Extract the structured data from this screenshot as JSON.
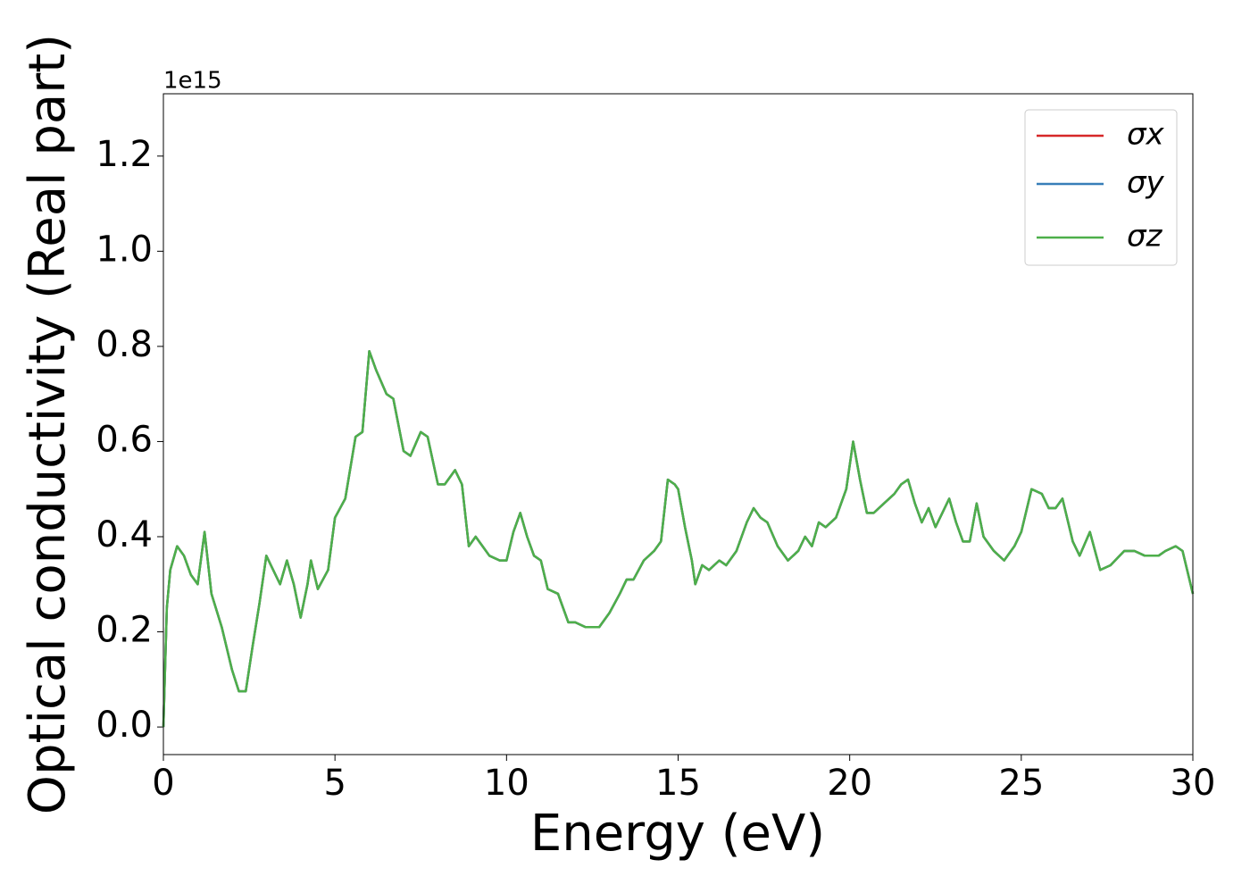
{
  "chart_data": {
    "type": "line",
    "xlabel": "Energy (eV)",
    "ylabel": "Optical conductivity (Real part)",
    "y_offset_label": "1e15",
    "x": [
      0,
      0.1,
      0.2,
      0.4,
      0.6,
      0.8,
      1.0,
      1.2,
      1.4,
      1.7,
      2.0,
      2.2,
      2.4,
      2.6,
      2.8,
      3.0,
      3.2,
      3.4,
      3.6,
      3.8,
      4.0,
      4.2,
      4.3,
      4.5,
      4.8,
      5.0,
      5.3,
      5.6,
      5.8,
      6.0,
      6.2,
      6.5,
      6.7,
      7.0,
      7.2,
      7.5,
      7.7,
      8.0,
      8.2,
      8.5,
      8.7,
      8.9,
      9.1,
      9.3,
      9.5,
      9.8,
      10.0,
      10.2,
      10.4,
      10.6,
      10.8,
      11.0,
      11.2,
      11.5,
      11.8,
      12.0,
      12.3,
      12.7,
      13.0,
      13.3,
      13.5,
      13.7,
      14.0,
      14.3,
      14.5,
      14.7,
      14.9,
      15.0,
      15.2,
      15.4,
      15.5,
      15.7,
      15.9,
      16.2,
      16.4,
      16.7,
      17.0,
      17.2,
      17.4,
      17.6,
      17.9,
      18.2,
      18.5,
      18.7,
      18.9,
      19.1,
      19.3,
      19.6,
      19.9,
      20.1,
      20.3,
      20.5,
      20.7,
      21.0,
      21.3,
      21.5,
      21.7,
      21.9,
      22.1,
      22.3,
      22.5,
      22.9,
      23.1,
      23.3,
      23.5,
      23.7,
      23.9,
      24.2,
      24.5,
      24.8,
      25.0,
      25.3,
      25.6,
      25.8,
      26.0,
      26.2,
      26.5,
      26.7,
      27.0,
      27.3,
      27.6,
      28.0,
      28.3,
      28.6,
      29.0,
      29.2,
      29.5,
      29.7,
      30.0
    ],
    "series": [
      {
        "name": "σx",
        "color": "#d62728",
        "values": [
          0.0,
          0.25,
          0.33,
          0.38,
          0.36,
          0.32,
          0.3,
          0.41,
          0.28,
          0.21,
          0.12,
          0.075,
          0.075,
          0.17,
          0.26,
          0.36,
          0.33,
          0.3,
          0.35,
          0.3,
          0.23,
          0.3,
          0.35,
          0.29,
          0.33,
          0.44,
          0.48,
          0.61,
          0.62,
          0.79,
          0.75,
          0.7,
          0.69,
          0.58,
          0.57,
          0.62,
          0.61,
          0.51,
          0.51,
          0.54,
          0.51,
          0.38,
          0.4,
          0.38,
          0.36,
          0.35,
          0.35,
          0.41,
          0.45,
          0.4,
          0.36,
          0.35,
          0.29,
          0.28,
          0.22,
          0.22,
          0.21,
          0.21,
          0.24,
          0.28,
          0.31,
          0.31,
          0.35,
          0.37,
          0.39,
          0.52,
          0.51,
          0.5,
          0.42,
          0.35,
          0.3,
          0.34,
          0.33,
          0.35,
          0.34,
          0.37,
          0.43,
          0.46,
          0.44,
          0.43,
          0.38,
          0.35,
          0.37,
          0.4,
          0.38,
          0.43,
          0.42,
          0.44,
          0.5,
          0.6,
          0.52,
          0.45,
          0.45,
          0.47,
          0.49,
          0.51,
          0.52,
          0.47,
          0.43,
          0.46,
          0.42,
          0.48,
          0.43,
          0.39,
          0.39,
          0.47,
          0.4,
          0.37,
          0.35,
          0.38,
          0.41,
          0.5,
          0.49,
          0.46,
          0.46,
          0.48,
          0.39,
          0.36,
          0.41,
          0.33,
          0.34,
          0.37,
          0.37,
          0.36,
          0.36,
          0.37,
          0.38,
          0.37,
          0.28
        ]
      },
      {
        "name": "σy",
        "color": "#377eb8",
        "values": [
          0.0,
          0.25,
          0.33,
          0.38,
          0.36,
          0.32,
          0.3,
          0.41,
          0.28,
          0.21,
          0.12,
          0.075,
          0.075,
          0.17,
          0.26,
          0.36,
          0.33,
          0.3,
          0.35,
          0.3,
          0.23,
          0.3,
          0.35,
          0.29,
          0.33,
          0.44,
          0.48,
          0.61,
          0.62,
          0.79,
          0.75,
          0.7,
          0.69,
          0.58,
          0.57,
          0.62,
          0.61,
          0.51,
          0.51,
          0.54,
          0.51,
          0.38,
          0.4,
          0.38,
          0.36,
          0.35,
          0.35,
          0.41,
          0.45,
          0.4,
          0.36,
          0.35,
          0.29,
          0.28,
          0.22,
          0.22,
          0.21,
          0.21,
          0.24,
          0.28,
          0.31,
          0.31,
          0.35,
          0.37,
          0.39,
          0.52,
          0.51,
          0.5,
          0.42,
          0.35,
          0.3,
          0.34,
          0.33,
          0.35,
          0.34,
          0.37,
          0.43,
          0.46,
          0.44,
          0.43,
          0.38,
          0.35,
          0.37,
          0.4,
          0.38,
          0.43,
          0.42,
          0.44,
          0.5,
          0.6,
          0.52,
          0.45,
          0.45,
          0.47,
          0.49,
          0.51,
          0.52,
          0.47,
          0.43,
          0.46,
          0.42,
          0.48,
          0.43,
          0.39,
          0.39,
          0.47,
          0.4,
          0.37,
          0.35,
          0.38,
          0.41,
          0.5,
          0.49,
          0.46,
          0.46,
          0.48,
          0.39,
          0.36,
          0.41,
          0.33,
          0.34,
          0.37,
          0.37,
          0.36,
          0.36,
          0.37,
          0.38,
          0.37,
          0.28
        ]
      },
      {
        "name": "σz",
        "color": "#4daf4a",
        "values": [
          0.0,
          0.25,
          0.33,
          0.38,
          0.36,
          0.32,
          0.3,
          0.41,
          0.28,
          0.21,
          0.12,
          0.075,
          0.075,
          0.17,
          0.26,
          0.36,
          0.33,
          0.3,
          0.35,
          0.3,
          0.23,
          0.3,
          0.35,
          0.29,
          0.33,
          0.44,
          0.48,
          0.61,
          0.62,
          0.79,
          0.75,
          0.7,
          0.69,
          0.58,
          0.57,
          0.62,
          0.61,
          0.51,
          0.51,
          0.54,
          0.51,
          0.38,
          0.4,
          0.38,
          0.36,
          0.35,
          0.35,
          0.41,
          0.45,
          0.4,
          0.36,
          0.35,
          0.29,
          0.28,
          0.22,
          0.22,
          0.21,
          0.21,
          0.24,
          0.28,
          0.31,
          0.31,
          0.35,
          0.37,
          0.39,
          0.52,
          0.51,
          0.5,
          0.42,
          0.35,
          0.3,
          0.34,
          0.33,
          0.35,
          0.34,
          0.37,
          0.43,
          0.46,
          0.44,
          0.43,
          0.38,
          0.35,
          0.37,
          0.4,
          0.38,
          0.43,
          0.42,
          0.44,
          0.5,
          0.6,
          0.52,
          0.45,
          0.45,
          0.47,
          0.49,
          0.51,
          0.52,
          0.47,
          0.43,
          0.46,
          0.42,
          0.48,
          0.43,
          0.39,
          0.39,
          0.47,
          0.4,
          0.37,
          0.35,
          0.38,
          0.41,
          0.5,
          0.49,
          0.46,
          0.46,
          0.48,
          0.39,
          0.36,
          0.41,
          0.33,
          0.34,
          0.37,
          0.37,
          0.36,
          0.36,
          0.37,
          0.38,
          0.37,
          0.28
        ]
      }
    ],
    "xlim": [
      0,
      30
    ],
    "xticks": [
      0,
      5,
      10,
      15,
      20,
      25,
      30
    ],
    "ylim": [
      -0.058,
      1.331
    ],
    "yticks": [
      {
        "value": 0,
        "label": "0.0"
      },
      0.2,
      0.4,
      0.6,
      0.8,
      {
        "value": 1,
        "label": "1.0"
      },
      1.2
    ],
    "legend": "upper right",
    "grid": false
  }
}
